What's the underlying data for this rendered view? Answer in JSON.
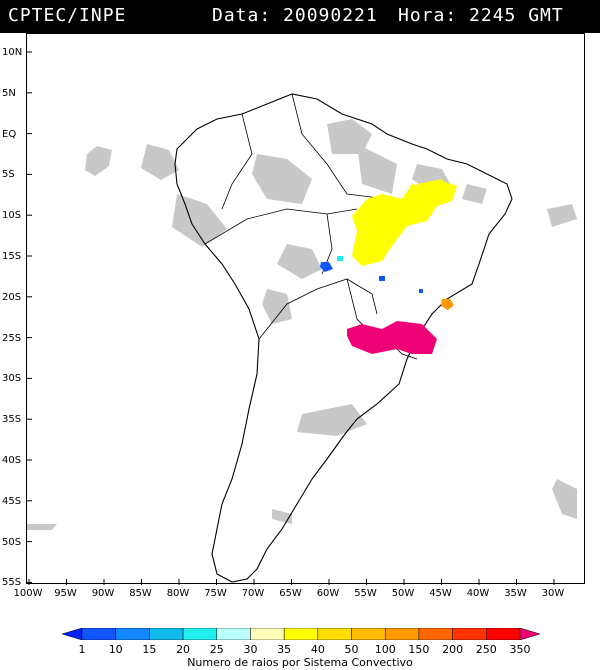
{
  "header": {
    "source": "CPTEC/INPE",
    "date_label": "Data: 20090221",
    "time_label": "Hora: 2245 GMT"
  },
  "lat_labels": [
    "10N",
    "5N",
    "EQ",
    "5S",
    "10S",
    "15S",
    "20S",
    "25S",
    "30S",
    "35S",
    "40S",
    "45S",
    "50S",
    "55S"
  ],
  "lon_labels": [
    "100W",
    "95W",
    "90W",
    "85W",
    "80W",
    "75W",
    "70W",
    "65W",
    "60W",
    "55W",
    "50W",
    "45W",
    "40W",
    "35W",
    "30W"
  ],
  "colorbar": {
    "ticks": [
      "1",
      "10",
      "15",
      "20",
      "25",
      "30",
      "35",
      "40",
      "50",
      "100",
      "150",
      "200",
      "250",
      "350"
    ],
    "colors": [
      "#0022ff",
      "#1155ff",
      "#1188ff",
      "#11bbee",
      "#22eeee",
      "#bbffff",
      "#ffffbb",
      "#ffff00",
      "#ffdd00",
      "#ffbb00",
      "#ff9900",
      "#ff6600",
      "#ff3300",
      "#ff0000",
      "#ee0077"
    ],
    "caption": "Numero de raios por Sistema Convectivo"
  },
  "colors": {
    "land_outline": "#000000",
    "cloud": "#c8c8c8",
    "lightning_yellow": "#ffff00",
    "lightning_magenta": "#ee0077",
    "lightning_blue": "#1155ff",
    "lightning_orange": "#ff9900"
  }
}
